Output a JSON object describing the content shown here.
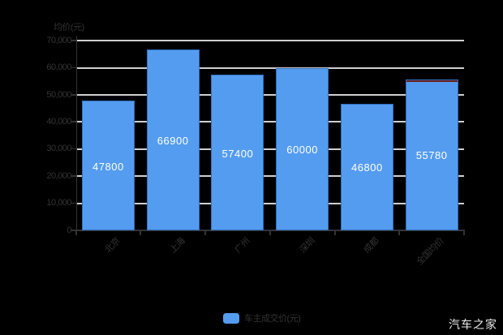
{
  "chart_data": {
    "type": "bar",
    "categories": [
      "北京",
      "上海",
      "广州",
      "深圳",
      "成都",
      "全国均价"
    ],
    "values": [
      47800,
      66900,
      57400,
      60000,
      46800,
      55780
    ],
    "series": [
      {
        "name": "车主成交价(元)",
        "values": [
          47800,
          66900,
          57400,
          60000,
          46800,
          55780
        ]
      }
    ],
    "title": "",
    "xlabel": "",
    "ylabel": "均价(元)",
    "ylim": [
      0,
      70000
    ],
    "y_ticks": [
      0,
      10000,
      20000,
      30000,
      40000,
      50000,
      60000,
      70000
    ],
    "y_tick_labels": [
      "0",
      "10,000",
      "20,000",
      "30,000",
      "40,000",
      "50,000",
      "60,000",
      "70,000"
    ],
    "grid": true,
    "legend_position": "bottom-center",
    "value_labels": [
      "47800",
      "66900",
      "57400",
      "60000",
      "46800",
      "55780"
    ]
  },
  "colors": {
    "background": "#000000",
    "bar_fill": "#549CEF",
    "bar_border": "#2f6fbe",
    "gridline": "#cfcfcf",
    "axis_line": "#333333",
    "axis_text": "#333333",
    "value_label": "#ffffff",
    "last_bar_top_marker": "#6b1b1b",
    "watermark_text": "#ececec"
  },
  "legend": {
    "label": "车主成交价(元)",
    "swatch_color": "#549CEF"
  },
  "y_axis": {
    "title": "均价(元)"
  },
  "watermark": {
    "text": "汽车之家"
  }
}
